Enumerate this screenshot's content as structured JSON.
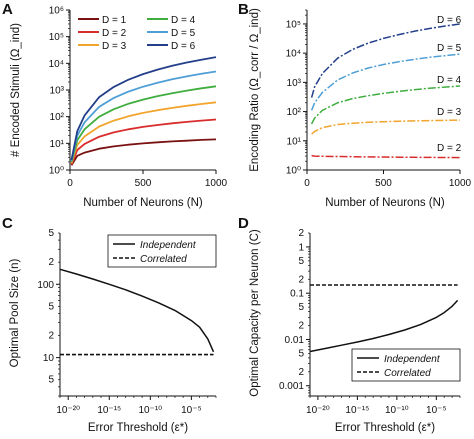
{
  "figure": {
    "panel_letters": [
      "A",
      "B",
      "C",
      "D"
    ]
  },
  "chart_data": [
    {
      "id": "A",
      "type": "line",
      "xlabel": "Number of Neurons (N)",
      "ylabel": "# Encoded Stimuli (Ω_ind)",
      "xlim": [
        0,
        1000
      ],
      "ylim": [
        1,
        1000000
      ],
      "yscale": "log",
      "xticks": [
        0,
        500,
        1000
      ],
      "yticks": [
        1,
        10,
        100,
        1000,
        10000,
        100000,
        1000000
      ],
      "legend": {
        "placement": "top-left",
        "columns": 2
      },
      "x": [
        10,
        50,
        100,
        200,
        300,
        400,
        500,
        600,
        700,
        800,
        900,
        1000
      ],
      "series": [
        {
          "name": "D = 1",
          "color": "#7a1212",
          "values": [
            1.5,
            3.4,
            4.5,
            6.3,
            7.7,
            8.9,
            9.9,
            10.9,
            11.8,
            12.6,
            13.4,
            14.1
          ]
        },
        {
          "name": "D = 2",
          "color": "#d92c2c",
          "values": [
            1.6,
            5.6,
            9.5,
            17.8,
            25.7,
            33.5,
            41.2,
            48.8,
            56.3,
            63.7,
            71.1,
            78.4
          ]
        },
        {
          "name": "D = 3",
          "color": "#f2a52d",
          "values": [
            1.8,
            8.7,
            18.2,
            42.7,
            71.4,
            103,
            138,
            175,
            214,
            255,
            299,
            345
          ]
        },
        {
          "name": "D = 4",
          "color": "#3fae3f",
          "values": [
            2.0,
            13.0,
            33.9,
            100,
            191,
            304,
            437,
            590,
            761,
            950,
            1155,
            1380
          ]
        },
        {
          "name": "D = 5",
          "color": "#4f9fd6",
          "values": [
            2.2,
            19.5,
            62.0,
            234,
            505,
            871,
            1330,
            1880,
            2520,
            3240,
            4050,
            4940
          ]
        },
        {
          "name": "D = 6",
          "color": "#243f8a",
          "values": [
            2.4,
            28.7,
            112,
            542,
            1310,
            2440,
            3940,
            5810,
            8060,
            10700,
            13700,
            17100
          ]
        }
      ]
    },
    {
      "id": "B",
      "type": "line",
      "xlabel": "Number of Neurons (N)",
      "ylabel": "Encoding Ratio (Ω_corr / Ω_ind)",
      "xlim": [
        0,
        1000
      ],
      "ylim": [
        1,
        300000
      ],
      "yscale": "log",
      "xticks": [
        0,
        500,
        1000
      ],
      "yticks": [
        1,
        10,
        100,
        1000,
        10000,
        100000
      ],
      "line_style": "dash-dot",
      "x": [
        30,
        50,
        100,
        200,
        300,
        400,
        500,
        600,
        700,
        800,
        900,
        1000
      ],
      "series": [
        {
          "name": "D = 2",
          "color": "#d92c2c",
          "values": [
            3.1,
            3.0,
            2.95,
            2.9,
            2.85,
            2.8,
            2.78,
            2.75,
            2.72,
            2.7,
            2.68,
            2.65
          ]
        },
        {
          "name": "D = 3",
          "color": "#f2a52d",
          "values": [
            17,
            21,
            28,
            36,
            40,
            43,
            45,
            47,
            48,
            49,
            50,
            51
          ]
        },
        {
          "name": "D = 4",
          "color": "#3fae3f",
          "values": [
            38,
            60,
            110,
            200,
            280,
            350,
            420,
            490,
            560,
            630,
            690,
            750
          ]
        },
        {
          "name": "D = 5",
          "color": "#4f9fd6",
          "values": [
            110,
            200,
            450,
            1200,
            2100,
            3100,
            4100,
            5100,
            6100,
            7200,
            8200,
            9300
          ]
        },
        {
          "name": "D = 6",
          "color": "#243f8a",
          "values": [
            300,
            700,
            2000,
            6700,
            13500,
            22000,
            32000,
            43000,
            56000,
            70000,
            84000,
            100000
          ]
        }
      ],
      "annotations": [
        "D = 2",
        "D = 3",
        "D = 4",
        "D = 5",
        "D = 6"
      ]
    },
    {
      "id": "C",
      "type": "line",
      "xlabel": "Error Threshold (ε*)",
      "ylabel": "Optimal Pool Size (n)",
      "xscale": "log",
      "yscale": "log",
      "xlim_exp": [
        -21,
        -2
      ],
      "ylim": [
        3,
        500
      ],
      "xtick_exponents": [
        -20,
        -15,
        -10,
        -5
      ],
      "ytick_labels": [
        "10",
        "100"
      ],
      "legend": {
        "placement": "top-right"
      },
      "x_exp": [
        -21,
        -19,
        -17,
        -15,
        -13,
        -11,
        -9,
        -7,
        -5,
        -4,
        -3,
        -2.3
      ],
      "series": [
        {
          "name": "Independent",
          "style": "solid",
          "values": [
            160,
            138,
            118,
            100,
            84,
            69,
            56,
            44,
            32,
            26,
            18,
            12
          ]
        },
        {
          "name": "Correlated",
          "style": "dashed",
          "values": [
            11,
            11,
            11,
            11,
            11,
            11,
            11,
            11,
            11,
            11,
            11,
            11
          ]
        }
      ]
    },
    {
      "id": "D",
      "type": "line",
      "xlabel": "Error Threshold (ε*)",
      "ylabel": "Optimal Capacity per Neuron (C)",
      "xscale": "log",
      "yscale": "log",
      "xlim_exp": [
        -21,
        -2
      ],
      "ylim": [
        0.0006,
        2
      ],
      "xtick_exponents": [
        -20,
        -15,
        -10,
        -5
      ],
      "ytick_labels": [
        "0.001",
        "0.01",
        "0.1",
        "1"
      ],
      "legend": {
        "placement": "bottom-right"
      },
      "x_exp": [
        -21,
        -19,
        -17,
        -15,
        -13,
        -11,
        -9,
        -7,
        -5,
        -4,
        -3,
        -2.3
      ],
      "series": [
        {
          "name": "Independent",
          "style": "solid",
          "values": [
            0.0055,
            0.0064,
            0.0075,
            0.0088,
            0.0105,
            0.0128,
            0.016,
            0.021,
            0.03,
            0.038,
            0.052,
            0.07
          ]
        },
        {
          "name": "Correlated",
          "style": "dashed",
          "values": [
            0.15,
            0.15,
            0.15,
            0.15,
            0.15,
            0.15,
            0.15,
            0.15,
            0.15,
            0.15,
            0.15,
            0.15
          ]
        }
      ]
    }
  ]
}
